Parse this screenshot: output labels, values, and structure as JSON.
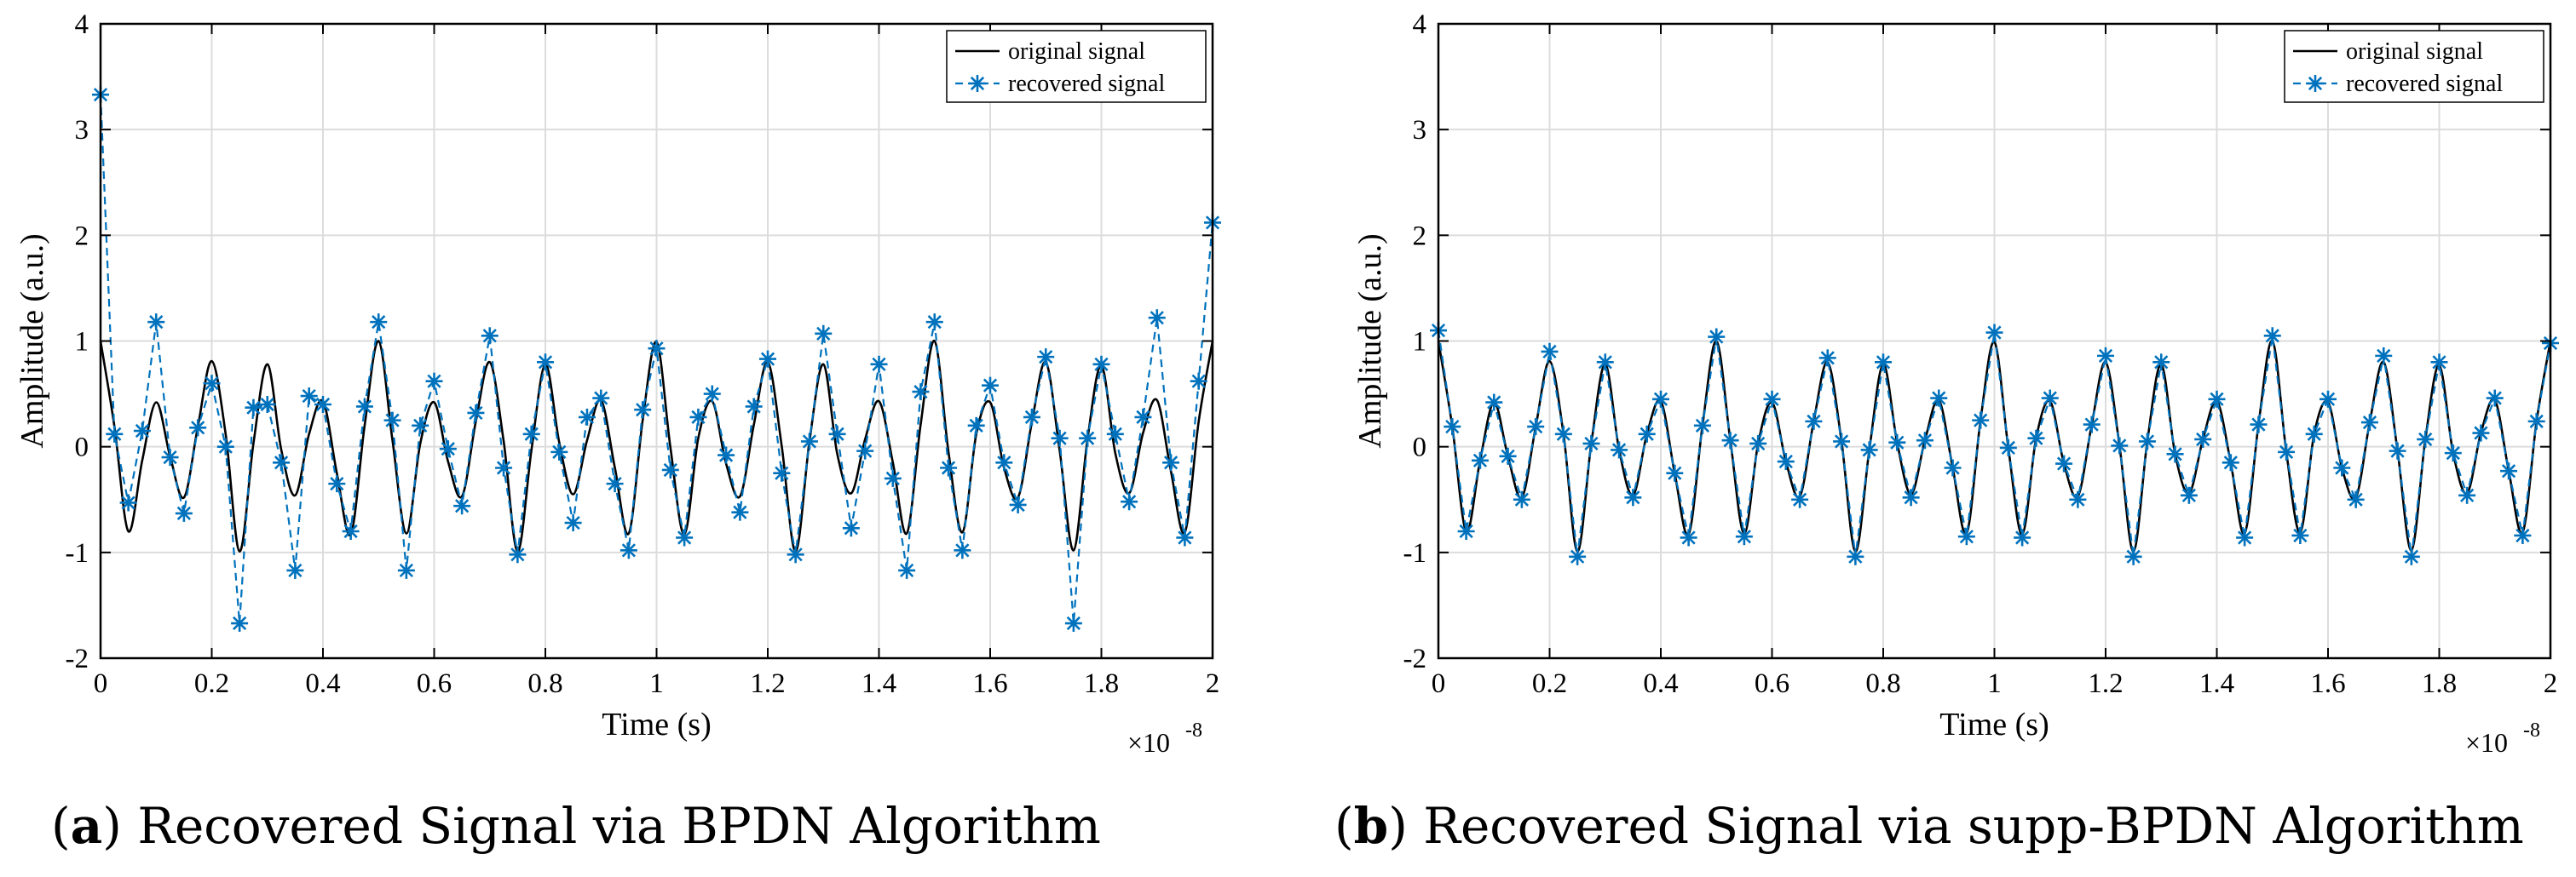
{
  "chart_data": [
    {
      "type": "line",
      "panel_label": "a",
      "caption": "Recovered Signal via BPDN Algorithm",
      "xlabel": "Time (s)",
      "ylabel": "Amplitude (a.u.)",
      "x_scale_note": "×10",
      "x_scale_exp": "-8",
      "xlim": [
        0,
        2
      ],
      "ylim": [
        -2,
        4
      ],
      "xticks": [
        "0",
        "0.2",
        "0.4",
        "0.6",
        "0.8",
        "1",
        "1.2",
        "1.4",
        "1.6",
        "1.8",
        "2"
      ],
      "yticks": [
        "-2",
        "-1",
        "0",
        "1",
        "2",
        "3",
        "4"
      ],
      "grid": true,
      "legend_position": "top-right",
      "series": [
        {
          "name": "original signal",
          "style": "solid",
          "color": "#000000",
          "x": [
            0,
            0.025,
            0.05,
            0.075,
            0.1,
            0.125,
            0.15,
            0.175,
            0.2,
            0.225,
            0.25,
            0.275,
            0.3,
            0.325,
            0.35,
            0.375,
            0.4,
            0.425,
            0.45,
            0.475,
            0.5,
            0.525,
            0.55,
            0.575,
            0.6,
            0.625,
            0.65,
            0.675,
            0.7,
            0.725,
            0.75,
            0.775,
            0.8,
            0.825,
            0.85,
            0.875,
            0.9,
            0.925,
            0.95,
            0.975,
            1.0,
            1.025,
            1.05,
            1.075,
            1.1,
            1.125,
            1.15,
            1.175,
            1.2,
            1.225,
            1.25,
            1.275,
            1.3,
            1.325,
            1.35,
            1.375,
            1.4,
            1.425,
            1.45,
            1.475,
            1.5,
            1.525,
            1.55,
            1.575,
            1.6,
            1.625,
            1.65,
            1.675,
            1.7,
            1.725,
            1.75,
            1.775,
            1.8,
            1.825,
            1.85,
            1.875,
            1.9,
            1.925,
            1.95,
            1.975,
            2.0
          ],
          "y": [
            1.0,
            0.19,
            -0.8,
            -0.13,
            0.42,
            -0.09,
            -0.48,
            0.19,
            0.81,
            0.12,
            -0.99,
            0.03,
            0.78,
            -0.03,
            -0.46,
            0.12,
            0.43,
            -0.25,
            -0.83,
            0.2,
            1.0,
            0.06,
            -0.82,
            0.03,
            0.42,
            -0.14,
            -0.47,
            0.24,
            0.8,
            0.05,
            -0.99,
            -0.03,
            0.78,
            0.04,
            -0.45,
            0.06,
            0.44,
            -0.2,
            -0.82,
            0.25,
            0.99,
            -0.01,
            -0.83,
            0.08,
            0.43,
            -0.16,
            -0.47,
            0.21,
            0.8,
            0.01,
            -0.99,
            0.05,
            0.78,
            -0.07,
            -0.44,
            0.07,
            0.43,
            -0.15,
            -0.82,
            0.21,
            1.0,
            -0.05,
            -0.81,
            0.12,
            0.42,
            -0.2,
            -0.48,
            0.23,
            0.8,
            -0.04,
            -0.98,
            0.07,
            0.77,
            -0.06,
            -0.44,
            0.13,
            0.44,
            -0.23,
            -0.81,
            0.24,
            1.0
          ]
        },
        {
          "name": "recovered signal",
          "style": "dashed-star",
          "color": "#0072bd",
          "x": [
            0,
            0.025,
            0.05,
            0.075,
            0.1,
            0.125,
            0.15,
            0.175,
            0.2,
            0.225,
            0.25,
            0.275,
            0.3,
            0.325,
            0.35,
            0.375,
            0.4,
            0.425,
            0.45,
            0.475,
            0.5,
            0.525,
            0.55,
            0.575,
            0.6,
            0.625,
            0.65,
            0.675,
            0.7,
            0.725,
            0.75,
            0.775,
            0.8,
            0.825,
            0.85,
            0.875,
            0.9,
            0.925,
            0.95,
            0.975,
            1.0,
            1.025,
            1.05,
            1.075,
            1.1,
            1.125,
            1.15,
            1.175,
            1.2,
            1.225,
            1.25,
            1.275,
            1.3,
            1.325,
            1.35,
            1.375,
            1.4,
            1.425,
            1.45,
            1.475,
            1.5,
            1.525,
            1.55,
            1.575,
            1.6,
            1.625,
            1.65,
            1.675,
            1.7,
            1.725,
            1.75,
            1.775,
            1.8,
            1.825,
            1.85,
            1.875,
            1.9,
            1.925,
            1.95,
            1.975,
            2.0
          ],
          "y": [
            3.33,
            0.12,
            -0.53,
            0.15,
            1.18,
            -0.1,
            -0.63,
            0.18,
            0.6,
            0.0,
            -1.67,
            0.37,
            0.4,
            -0.15,
            -1.17,
            0.48,
            0.4,
            -0.35,
            -0.8,
            0.38,
            1.18,
            0.25,
            -1.17,
            0.2,
            0.62,
            -0.02,
            -0.56,
            0.32,
            1.05,
            -0.2,
            -1.02,
            0.12,
            0.8,
            -0.05,
            -0.72,
            0.28,
            0.46,
            -0.35,
            -0.98,
            0.35,
            0.93,
            -0.22,
            -0.86,
            0.28,
            0.5,
            -0.08,
            -0.62,
            0.38,
            0.83,
            -0.25,
            -1.02,
            0.05,
            1.07,
            0.12,
            -0.77,
            -0.04,
            0.78,
            -0.3,
            -1.17,
            0.52,
            1.18,
            -0.2,
            -0.98,
            0.2,
            0.58,
            -0.15,
            -0.55,
            0.28,
            0.85,
            0.08,
            -1.67,
            0.08,
            0.78,
            0.12,
            -0.52,
            0.28,
            1.22,
            -0.15,
            -0.86,
            0.62,
            2.12
          ]
        }
      ]
    },
    {
      "type": "line",
      "panel_label": "b",
      "caption": "Recovered Signal via supp-BPDN Algorithm",
      "xlabel": "Time (s)",
      "ylabel": "Amplitude (a.u.)",
      "x_scale_note": "×10",
      "x_scale_exp": "-8",
      "xlim": [
        0,
        2
      ],
      "ylim": [
        -2,
        4
      ],
      "xticks": [
        "0",
        "0.2",
        "0.4",
        "0.6",
        "0.8",
        "1",
        "1.2",
        "1.4",
        "1.6",
        "1.8",
        "2"
      ],
      "yticks": [
        "-2",
        "-1",
        "0",
        "1",
        "2",
        "3",
        "4"
      ],
      "grid": true,
      "legend_position": "top-right",
      "series": [
        {
          "name": "original signal",
          "style": "solid",
          "color": "#000000",
          "x": [
            0,
            0.025,
            0.05,
            0.075,
            0.1,
            0.125,
            0.15,
            0.175,
            0.2,
            0.225,
            0.25,
            0.275,
            0.3,
            0.325,
            0.35,
            0.375,
            0.4,
            0.425,
            0.45,
            0.475,
            0.5,
            0.525,
            0.55,
            0.575,
            0.6,
            0.625,
            0.65,
            0.675,
            0.7,
            0.725,
            0.75,
            0.775,
            0.8,
            0.825,
            0.85,
            0.875,
            0.9,
            0.925,
            0.95,
            0.975,
            1.0,
            1.025,
            1.05,
            1.075,
            1.1,
            1.125,
            1.15,
            1.175,
            1.2,
            1.225,
            1.25,
            1.275,
            1.3,
            1.325,
            1.35,
            1.375,
            1.4,
            1.425,
            1.45,
            1.475,
            1.5,
            1.525,
            1.55,
            1.575,
            1.6,
            1.625,
            1.65,
            1.675,
            1.7,
            1.725,
            1.75,
            1.775,
            1.8,
            1.825,
            1.85,
            1.875,
            1.9,
            1.925,
            1.95,
            1.975,
            2.0
          ],
          "y": [
            1.0,
            0.19,
            -0.8,
            -0.13,
            0.42,
            -0.09,
            -0.48,
            0.19,
            0.81,
            0.12,
            -0.99,
            0.03,
            0.78,
            -0.03,
            -0.46,
            0.12,
            0.43,
            -0.25,
            -0.83,
            0.2,
            1.0,
            0.06,
            -0.82,
            0.03,
            0.42,
            -0.14,
            -0.47,
            0.24,
            0.8,
            0.05,
            -0.99,
            -0.03,
            0.78,
            0.04,
            -0.45,
            0.06,
            0.44,
            -0.2,
            -0.82,
            0.25,
            0.99,
            -0.01,
            -0.83,
            0.08,
            0.43,
            -0.16,
            -0.47,
            0.21,
            0.8,
            0.01,
            -0.99,
            0.05,
            0.78,
            -0.07,
            -0.44,
            0.07,
            0.43,
            -0.15,
            -0.82,
            0.21,
            1.0,
            -0.05,
            -0.81,
            0.12,
            0.42,
            -0.2,
            -0.48,
            0.23,
            0.8,
            -0.04,
            -0.98,
            0.07,
            0.77,
            -0.06,
            -0.44,
            0.13,
            0.44,
            -0.23,
            -0.81,
            0.24,
            1.0
          ]
        },
        {
          "name": "recovered signal",
          "style": "dashed-star",
          "color": "#0072bd",
          "x": [
            0,
            0.025,
            0.05,
            0.075,
            0.1,
            0.125,
            0.15,
            0.175,
            0.2,
            0.225,
            0.25,
            0.275,
            0.3,
            0.325,
            0.35,
            0.375,
            0.4,
            0.425,
            0.45,
            0.475,
            0.5,
            0.525,
            0.55,
            0.575,
            0.6,
            0.625,
            0.65,
            0.675,
            0.7,
            0.725,
            0.75,
            0.775,
            0.8,
            0.825,
            0.85,
            0.875,
            0.9,
            0.925,
            0.95,
            0.975,
            1.0,
            1.025,
            1.05,
            1.075,
            1.1,
            1.125,
            1.15,
            1.175,
            1.2,
            1.225,
            1.25,
            1.275,
            1.3,
            1.325,
            1.35,
            1.375,
            1.4,
            1.425,
            1.45,
            1.475,
            1.5,
            1.525,
            1.55,
            1.575,
            1.6,
            1.625,
            1.65,
            1.675,
            1.7,
            1.725,
            1.75,
            1.775,
            1.8,
            1.825,
            1.85,
            1.875,
            1.9,
            1.925,
            1.95,
            1.975,
            2.0
          ],
          "y": [
            1.1,
            0.19,
            -0.8,
            -0.13,
            0.42,
            -0.09,
            -0.5,
            0.19,
            0.9,
            0.12,
            -1.04,
            0.03,
            0.8,
            -0.03,
            -0.48,
            0.12,
            0.45,
            -0.25,
            -0.86,
            0.2,
            1.04,
            0.06,
            -0.85,
            0.03,
            0.45,
            -0.14,
            -0.5,
            0.24,
            0.84,
            0.05,
            -1.04,
            -0.03,
            0.8,
            0.04,
            -0.48,
            0.06,
            0.46,
            -0.2,
            -0.85,
            0.25,
            1.08,
            -0.01,
            -0.86,
            0.08,
            0.46,
            -0.16,
            -0.5,
            0.21,
            0.86,
            0.01,
            -1.04,
            0.05,
            0.8,
            -0.07,
            -0.46,
            0.07,
            0.45,
            -0.15,
            -0.86,
            0.21,
            1.05,
            -0.05,
            -0.84,
            0.12,
            0.45,
            -0.2,
            -0.5,
            0.23,
            0.86,
            -0.04,
            -1.04,
            0.07,
            0.8,
            -0.06,
            -0.46,
            0.13,
            0.46,
            -0.23,
            -0.84,
            0.24,
            0.98
          ]
        }
      ]
    }
  ]
}
